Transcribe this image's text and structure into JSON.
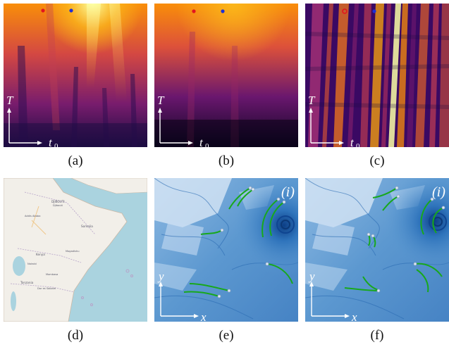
{
  "figure": {
    "panels": [
      {
        "id": "a",
        "caption": "(a)",
        "type": "heatmap-smooth",
        "axis_y": "T",
        "axis_x": "t",
        "axis_x_sub": "0",
        "markers": [
          "#e3141f",
          "#1d2fd6"
        ]
      },
      {
        "id": "b",
        "caption": "(b)",
        "type": "heatmap-smooth",
        "axis_y": "T",
        "axis_x": "t",
        "axis_x_sub": "0",
        "markers": [
          "#e3141f",
          "#1d2fd6"
        ]
      },
      {
        "id": "c",
        "caption": "(c)",
        "type": "heatmap-noisy",
        "axis_y": "T",
        "axis_x": "t",
        "axis_x_sub": "0",
        "markers": [
          "#e3141f",
          "#1d2fd6"
        ]
      },
      {
        "id": "d",
        "caption": "(d)",
        "type": "map"
      },
      {
        "id": "e",
        "caption": "(e)",
        "type": "flow",
        "axis_y": "y",
        "axis_x": "x",
        "inset": "(i)"
      },
      {
        "id": "f",
        "caption": "(f)",
        "type": "flow",
        "axis_y": "y",
        "axis_x": "x",
        "inset": "(i)"
      }
    ]
  },
  "map_labels": [
    "DJIBOUTI",
    "Djibouti",
    "Addis Ababa",
    "Somalia",
    "Mogadishu",
    "Kenya",
    "Nairobi",
    "Mombasa",
    "Dar es Salaam",
    "Tanzania"
  ],
  "colors": {
    "heat_dark": "#1b0c41",
    "heat_mid": "#bb3754",
    "heat_bright": "#fcffa4",
    "flow_light": "#dbe9f7",
    "flow_dark": "#1c5ca4",
    "curve": "#18a81c"
  }
}
